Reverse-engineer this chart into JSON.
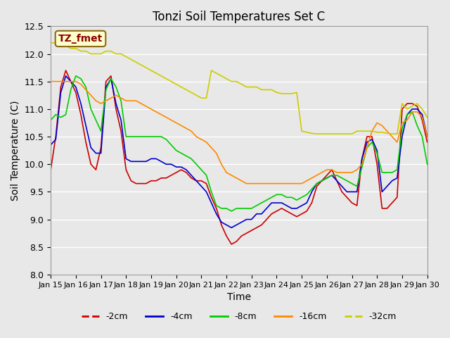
{
  "title": "Tonzi Soil Temperatures Set C",
  "xlabel": "Time",
  "ylabel": "Soil Temperature (C)",
  "ylim": [
    8.0,
    12.5
  ],
  "xlim": [
    0,
    15
  ],
  "background_color": "#e8e8e8",
  "plot_bg_color": "#e8e8e8",
  "grid_color": "#ffffff",
  "annotation_text": "TZ_fmet",
  "annotation_bg": "#ffffcc",
  "annotation_fg": "#8b0000",
  "x_tick_labels": [
    "Jan 15",
    "Jan 16",
    "Jan 17",
    "Jan 18",
    "Jan 19",
    "Jan 20",
    "Jan 21",
    "Jan 22",
    "Jan 23",
    "Jan 24",
    "Jan 25",
    "Jan 26",
    "Jan 27",
    "Jan 28",
    "Jan 29",
    "Jan 30"
  ],
  "legend_labels": [
    "-2cm",
    "-4cm",
    "-8cm",
    "-16cm",
    "-32cm"
  ],
  "legend_colors": [
    "#cc0000",
    "#0000cc",
    "#00cc00",
    "#ff8800",
    "#cccc00"
  ],
  "series": {
    "m2cm": {
      "color": "#cc0000",
      "x": [
        0,
        0.2,
        0.4,
        0.6,
        0.8,
        1.0,
        1.2,
        1.4,
        1.6,
        1.8,
        2.0,
        2.2,
        2.4,
        2.6,
        2.8,
        3.0,
        3.2,
        3.4,
        3.6,
        3.8,
        4.0,
        4.2,
        4.4,
        4.6,
        4.8,
        5.0,
        5.2,
        5.4,
        5.6,
        5.8,
        6.0,
        6.2,
        6.4,
        6.6,
        6.8,
        7.0,
        7.2,
        7.4,
        7.6,
        7.8,
        8.0,
        8.2,
        8.4,
        8.6,
        8.8,
        9.0,
        9.2,
        9.4,
        9.6,
        9.8,
        10.0,
        10.2,
        10.4,
        10.6,
        10.8,
        11.0,
        11.2,
        11.4,
        11.6,
        11.8,
        12.0,
        12.2,
        12.4,
        12.6,
        12.8,
        13.0,
        13.2,
        13.4,
        13.6,
        13.8,
        14.0,
        14.2,
        14.4,
        14.6,
        14.8,
        15.0
      ],
      "y": [
        9.9,
        10.5,
        11.4,
        11.7,
        11.5,
        11.3,
        10.9,
        10.4,
        10.0,
        9.9,
        10.3,
        11.5,
        11.6,
        11.0,
        10.6,
        9.9,
        9.7,
        9.65,
        9.65,
        9.65,
        9.7,
        9.7,
        9.75,
        9.75,
        9.8,
        9.85,
        9.9,
        9.85,
        9.75,
        9.7,
        9.7,
        9.65,
        9.4,
        9.2,
        8.9,
        8.7,
        8.55,
        8.6,
        8.7,
        8.75,
        8.8,
        8.85,
        8.9,
        9.0,
        9.1,
        9.15,
        9.2,
        9.15,
        9.1,
        9.05,
        9.1,
        9.15,
        9.3,
        9.6,
        9.7,
        9.8,
        9.9,
        9.7,
        9.5,
        9.4,
        9.3,
        9.25,
        10.1,
        10.5,
        10.5,
        10.0,
        9.2,
        9.2,
        9.3,
        9.4,
        11.0,
        11.1,
        11.1,
        11.05,
        10.8,
        10.4
      ]
    },
    "m4cm": {
      "color": "#0000cc",
      "x": [
        0,
        0.2,
        0.4,
        0.6,
        0.8,
        1.0,
        1.2,
        1.4,
        1.6,
        1.8,
        2.0,
        2.2,
        2.4,
        2.6,
        2.8,
        3.0,
        3.2,
        3.4,
        3.6,
        3.8,
        4.0,
        4.2,
        4.4,
        4.6,
        4.8,
        5.0,
        5.2,
        5.4,
        5.6,
        5.8,
        6.0,
        6.2,
        6.4,
        6.6,
        6.8,
        7.0,
        7.2,
        7.4,
        7.6,
        7.8,
        8.0,
        8.2,
        8.4,
        8.6,
        8.8,
        9.0,
        9.2,
        9.4,
        9.6,
        9.8,
        10.0,
        10.2,
        10.4,
        10.6,
        10.8,
        11.0,
        11.2,
        11.4,
        11.6,
        11.8,
        12.0,
        12.2,
        12.4,
        12.6,
        12.8,
        13.0,
        13.2,
        13.4,
        13.6,
        13.8,
        14.0,
        14.2,
        14.4,
        14.6,
        14.8,
        15.0
      ],
      "y": [
        10.35,
        10.45,
        11.3,
        11.6,
        11.5,
        11.4,
        11.1,
        10.7,
        10.3,
        10.2,
        10.2,
        11.4,
        11.55,
        11.1,
        10.8,
        10.1,
        10.05,
        10.05,
        10.05,
        10.05,
        10.1,
        10.1,
        10.05,
        10.0,
        10.0,
        9.95,
        9.95,
        9.9,
        9.8,
        9.7,
        9.6,
        9.5,
        9.3,
        9.1,
        8.95,
        8.9,
        8.85,
        8.9,
        8.95,
        9.0,
        9.0,
        9.1,
        9.1,
        9.2,
        9.3,
        9.3,
        9.3,
        9.25,
        9.2,
        9.2,
        9.25,
        9.3,
        9.5,
        9.65,
        9.7,
        9.75,
        9.8,
        9.7,
        9.6,
        9.5,
        9.5,
        9.5,
        10.1,
        10.4,
        10.45,
        10.25,
        9.5,
        9.6,
        9.7,
        9.75,
        10.5,
        10.9,
        11.0,
        11.0,
        10.9,
        10.5
      ]
    },
    "m8cm": {
      "color": "#00cc00",
      "x": [
        0,
        0.2,
        0.4,
        0.6,
        0.8,
        1.0,
        1.2,
        1.4,
        1.6,
        1.8,
        2.0,
        2.2,
        2.4,
        2.6,
        2.8,
        3.0,
        3.2,
        3.4,
        3.6,
        3.8,
        4.0,
        4.2,
        4.4,
        4.6,
        4.8,
        5.0,
        5.2,
        5.4,
        5.6,
        5.8,
        6.0,
        6.2,
        6.4,
        6.6,
        6.8,
        7.0,
        7.2,
        7.4,
        7.6,
        7.8,
        8.0,
        8.2,
        8.4,
        8.6,
        8.8,
        9.0,
        9.2,
        9.4,
        9.6,
        9.8,
        10.0,
        10.2,
        10.4,
        10.6,
        10.8,
        11.0,
        11.2,
        11.4,
        11.6,
        11.8,
        12.0,
        12.2,
        12.4,
        12.6,
        12.8,
        13.0,
        13.2,
        13.4,
        13.6,
        13.8,
        14.0,
        14.2,
        14.4,
        14.6,
        14.8,
        15.0
      ],
      "y": [
        10.8,
        10.9,
        10.85,
        10.9,
        11.35,
        11.6,
        11.55,
        11.4,
        11.0,
        10.8,
        10.6,
        11.35,
        11.55,
        11.4,
        11.15,
        10.5,
        10.5,
        10.5,
        10.5,
        10.5,
        10.5,
        10.5,
        10.5,
        10.45,
        10.35,
        10.25,
        10.2,
        10.15,
        10.1,
        10.0,
        9.9,
        9.8,
        9.5,
        9.25,
        9.2,
        9.2,
        9.15,
        9.2,
        9.2,
        9.2,
        9.2,
        9.25,
        9.3,
        9.35,
        9.4,
        9.45,
        9.45,
        9.4,
        9.4,
        9.35,
        9.4,
        9.45,
        9.55,
        9.65,
        9.7,
        9.75,
        9.8,
        9.8,
        9.75,
        9.7,
        9.65,
        9.6,
        9.95,
        10.3,
        10.4,
        10.2,
        9.85,
        9.85,
        9.85,
        9.9,
        10.65,
        10.9,
        10.95,
        10.7,
        10.5,
        10.0
      ]
    },
    "m16cm": {
      "color": "#ff8800",
      "x": [
        0,
        0.2,
        0.4,
        0.6,
        0.8,
        1.0,
        1.2,
        1.4,
        1.6,
        1.8,
        2.0,
        2.2,
        2.4,
        2.6,
        2.8,
        3.0,
        3.2,
        3.4,
        3.6,
        3.8,
        4.0,
        4.2,
        4.4,
        4.6,
        4.8,
        5.0,
        5.2,
        5.4,
        5.6,
        5.8,
        6.0,
        6.2,
        6.4,
        6.6,
        6.8,
        7.0,
        7.2,
        7.4,
        7.6,
        7.8,
        8.0,
        8.2,
        8.4,
        8.6,
        8.8,
        9.0,
        9.2,
        9.4,
        9.6,
        9.8,
        10.0,
        10.2,
        10.4,
        10.6,
        10.8,
        11.0,
        11.2,
        11.4,
        11.6,
        11.8,
        12.0,
        12.2,
        12.4,
        12.6,
        12.8,
        13.0,
        13.2,
        13.4,
        13.6,
        13.8,
        14.0,
        14.2,
        14.4,
        14.6,
        14.8,
        15.0
      ],
      "y": [
        11.5,
        11.5,
        11.5,
        11.5,
        11.5,
        11.5,
        11.45,
        11.35,
        11.25,
        11.15,
        11.1,
        11.15,
        11.2,
        11.25,
        11.2,
        11.15,
        11.15,
        11.15,
        11.1,
        11.05,
        11.0,
        10.95,
        10.9,
        10.85,
        10.8,
        10.75,
        10.7,
        10.65,
        10.6,
        10.5,
        10.45,
        10.4,
        10.3,
        10.2,
        10.0,
        9.85,
        9.8,
        9.75,
        9.7,
        9.65,
        9.65,
        9.65,
        9.65,
        9.65,
        9.65,
        9.65,
        9.65,
        9.65,
        9.65,
        9.65,
        9.65,
        9.7,
        9.75,
        9.8,
        9.85,
        9.9,
        9.9,
        9.85,
        9.85,
        9.85,
        9.85,
        9.9,
        10.0,
        10.3,
        10.6,
        10.75,
        10.7,
        10.6,
        10.5,
        10.4,
        10.75,
        10.8,
        10.95,
        10.95,
        10.85,
        10.5
      ]
    },
    "m32cm": {
      "color": "#cccc00",
      "x": [
        0,
        0.2,
        0.4,
        0.6,
        0.8,
        1.0,
        1.2,
        1.4,
        1.6,
        1.8,
        2.0,
        2.2,
        2.4,
        2.6,
        2.8,
        3.0,
        3.2,
        3.4,
        3.6,
        3.8,
        4.0,
        4.2,
        4.4,
        4.6,
        4.8,
        5.0,
        5.2,
        5.4,
        5.6,
        5.8,
        6.0,
        6.2,
        6.4,
        6.6,
        6.8,
        7.0,
        7.2,
        7.4,
        7.6,
        7.8,
        8.0,
        8.2,
        8.4,
        8.6,
        8.8,
        9.0,
        9.2,
        9.4,
        9.6,
        9.8,
        10.0,
        10.2,
        10.4,
        10.6,
        10.8,
        11.0,
        11.2,
        11.4,
        11.6,
        11.8,
        12.0,
        12.2,
        12.4,
        12.6,
        12.8,
        13.0,
        13.2,
        13.4,
        13.6,
        13.8,
        14.0,
        14.2,
        14.4,
        14.6,
        14.8,
        15.0
      ],
      "y": [
        12.2,
        12.2,
        12.15,
        12.15,
        12.1,
        12.1,
        12.05,
        12.05,
        12.0,
        12.0,
        12.0,
        12.05,
        12.05,
        12.0,
        12.0,
        11.95,
        11.9,
        11.85,
        11.8,
        11.75,
        11.7,
        11.65,
        11.6,
        11.55,
        11.5,
        11.45,
        11.4,
        11.35,
        11.3,
        11.25,
        11.2,
        11.2,
        11.7,
        11.65,
        11.6,
        11.55,
        11.5,
        11.5,
        11.45,
        11.4,
        11.4,
        11.4,
        11.35,
        11.35,
        11.35,
        11.3,
        11.28,
        11.28,
        11.28,
        11.3,
        10.6,
        10.58,
        10.56,
        10.55,
        10.55,
        10.55,
        10.55,
        10.55,
        10.55,
        10.55,
        10.55,
        10.6,
        10.6,
        10.6,
        10.6,
        10.58,
        10.58,
        10.56,
        10.55,
        10.55,
        11.1,
        11.0,
        11.05,
        11.1,
        11.0,
        10.85
      ]
    }
  }
}
